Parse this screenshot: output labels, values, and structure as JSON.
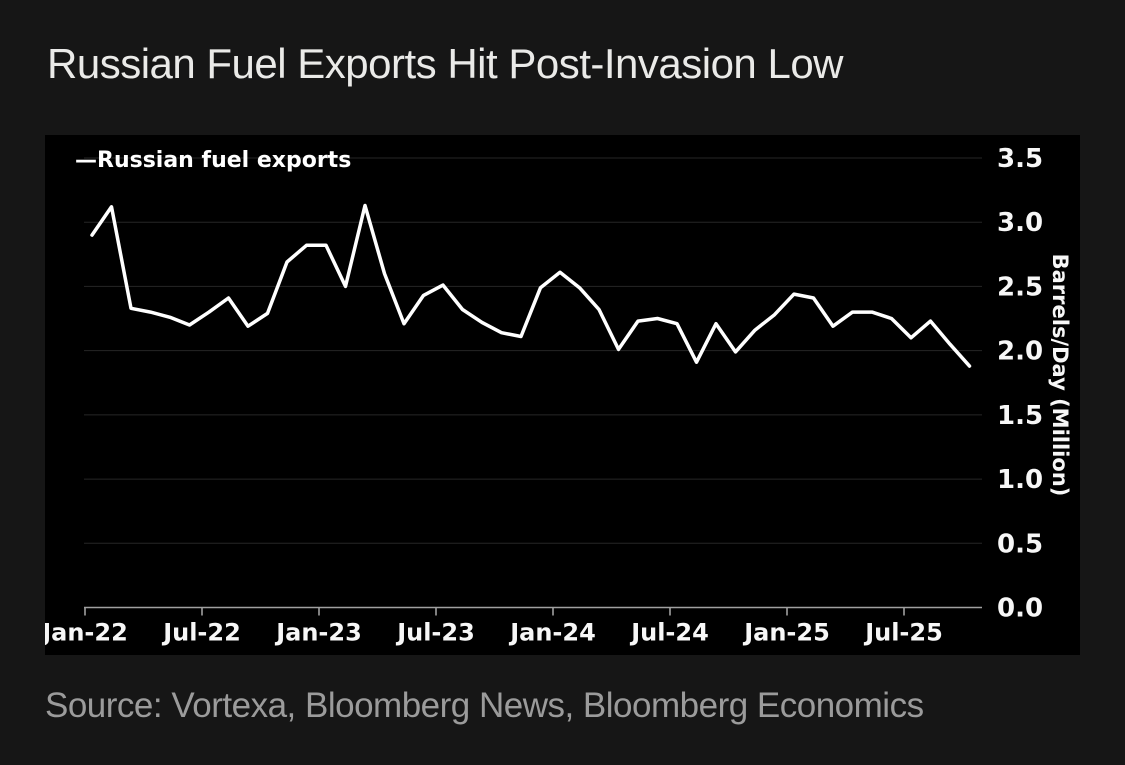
{
  "page": {
    "title": "Russian Fuel Exports Hit Post-Invasion Low",
    "source": "Source: Vortexa, Bloomberg News, Bloomberg Economics"
  },
  "legend": {
    "swatch": "—",
    "label": "Russian fuel exports"
  },
  "colors": {
    "page_bg": "#161616",
    "chart_bg": "#000000",
    "line": "#ffffff",
    "grid": "#262626",
    "axis": "#a0a0a0",
    "title_text": "#eaeae8",
    "label_text": "#f7f7f7",
    "source_text": "#9b9b9b"
  },
  "chart_data": {
    "type": "line",
    "title": "Russian Fuel Exports Hit Post-Invasion Low",
    "legend_entries": [
      "Russian fuel exports"
    ],
    "legend_position": "top-left",
    "xlabel": "",
    "ylabel": "Barrels/Day (Million)",
    "ylim": [
      0.0,
      3.5
    ],
    "ytick_interval": 0.5,
    "yticks": [
      "3.5",
      "3.0",
      "2.5",
      "2.0",
      "1.5",
      "1.0",
      "0.5",
      "0.0"
    ],
    "xticks": [
      "Jan-22",
      "Jul-22",
      "Jan-23",
      "Jul-23",
      "Jan-24",
      "Jul-24",
      "Jan-25",
      "Jul-25"
    ],
    "grid": true,
    "x": [
      "Jan-22",
      "Feb-22",
      "Mar-22",
      "Apr-22",
      "May-22",
      "Jun-22",
      "Jul-22",
      "Aug-22",
      "Sep-22",
      "Oct-22",
      "Nov-22",
      "Dec-22",
      "Jan-23",
      "Feb-23",
      "Mar-23",
      "Apr-23",
      "May-23",
      "Jun-23",
      "Jul-23",
      "Aug-23",
      "Sep-23",
      "Oct-23",
      "Nov-23",
      "Dec-23",
      "Jan-24",
      "Feb-24",
      "Mar-24",
      "Apr-24",
      "May-24",
      "Jun-24",
      "Jul-24",
      "Aug-24",
      "Sep-24",
      "Oct-24",
      "Nov-24",
      "Dec-24",
      "Jan-25",
      "Feb-25",
      "Mar-25",
      "Apr-25",
      "May-25",
      "Jun-25",
      "Jul-25",
      "Aug-25",
      "Sep-25",
      "Oct-25"
    ],
    "series": [
      {
        "name": "Russian fuel exports",
        "values": [
          2.9,
          3.12,
          2.33,
          2.3,
          2.26,
          2.2,
          2.3,
          2.41,
          2.19,
          2.29,
          2.69,
          2.82,
          2.82,
          2.5,
          3.13,
          2.6,
          2.21,
          2.43,
          2.51,
          2.32,
          2.22,
          2.14,
          2.11,
          2.49,
          2.61,
          2.49,
          2.32,
          2.01,
          2.23,
          2.25,
          2.21,
          1.91,
          2.21,
          1.99,
          2.16,
          2.28,
          2.44,
          2.41,
          2.19,
          2.3,
          2.3,
          2.25,
          2.1,
          2.23,
          2.05,
          1.88
        ]
      }
    ]
  }
}
